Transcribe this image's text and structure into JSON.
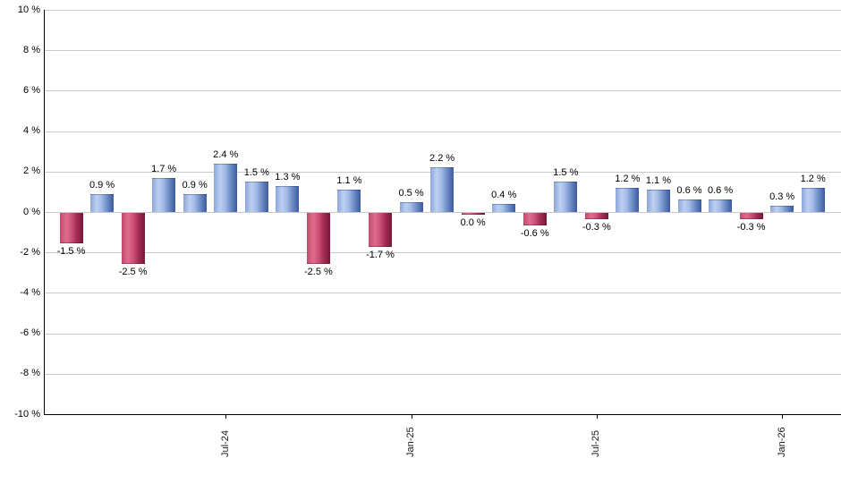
{
  "chart_data": {
    "type": "bar",
    "title": "",
    "xlabel": "",
    "ylabel": "",
    "ylim": [
      -10,
      10
    ],
    "grid": true,
    "legend": "none",
    "value_label_format": "{value} %",
    "values": [
      -1.5,
      0.9,
      -2.5,
      1.7,
      0.9,
      2.4,
      1.5,
      1.3,
      -2.5,
      1.1,
      -1.7,
      0.5,
      2.2,
      0.0,
      0.4,
      -0.6,
      1.5,
      -0.3,
      1.2,
      1.1,
      0.6,
      0.6,
      -0.3,
      0.3,
      1.2
    ],
    "bar_labels": [
      "-1.5 %",
      "0.9 %",
      "-2.5 %",
      "1.7 %",
      "0.9 %",
      "2.4 %",
      "1.5 %",
      "1.3 %",
      "-2.5 %",
      "1.1 %",
      "-1.7 %",
      "0.5 %",
      "2.2 %",
      "0.0 %",
      "0.4 %",
      "-0.6 %",
      "1.5 %",
      "-0.3 %",
      "1.2 %",
      "1.1 %",
      "0.6 %",
      "0.6 %",
      "-0.3 %",
      "0.3 %",
      "1.2 %"
    ],
    "y_tick_labels": [
      "10 %",
      "8 %",
      "6 %",
      "4 %",
      "2 %",
      "0 %",
      "-2 %",
      "-4 %",
      "-6 %",
      "-8 %",
      "-10 %"
    ],
    "x_tick_labels": [
      {
        "label": "Jul-24",
        "bar_index": 5
      },
      {
        "label": "Jan-25",
        "bar_index": 11
      },
      {
        "label": "Jul-25",
        "bar_index": 17
      },
      {
        "label": "Jan-26",
        "bar_index": 23
      }
    ],
    "colors": {
      "positive_gradient": [
        "#8CA6D8",
        "#BDD0F2",
        "#A2BBE6",
        "#6D8CC6",
        "#3C5B9E"
      ],
      "negative_gradient": [
        "#C4486B",
        "#E06C8D",
        "#CE537A",
        "#A52D55",
        "#75173B"
      ],
      "gridline": "#c8c8c8",
      "axis": "#000000",
      "label_text": "#000000"
    }
  }
}
